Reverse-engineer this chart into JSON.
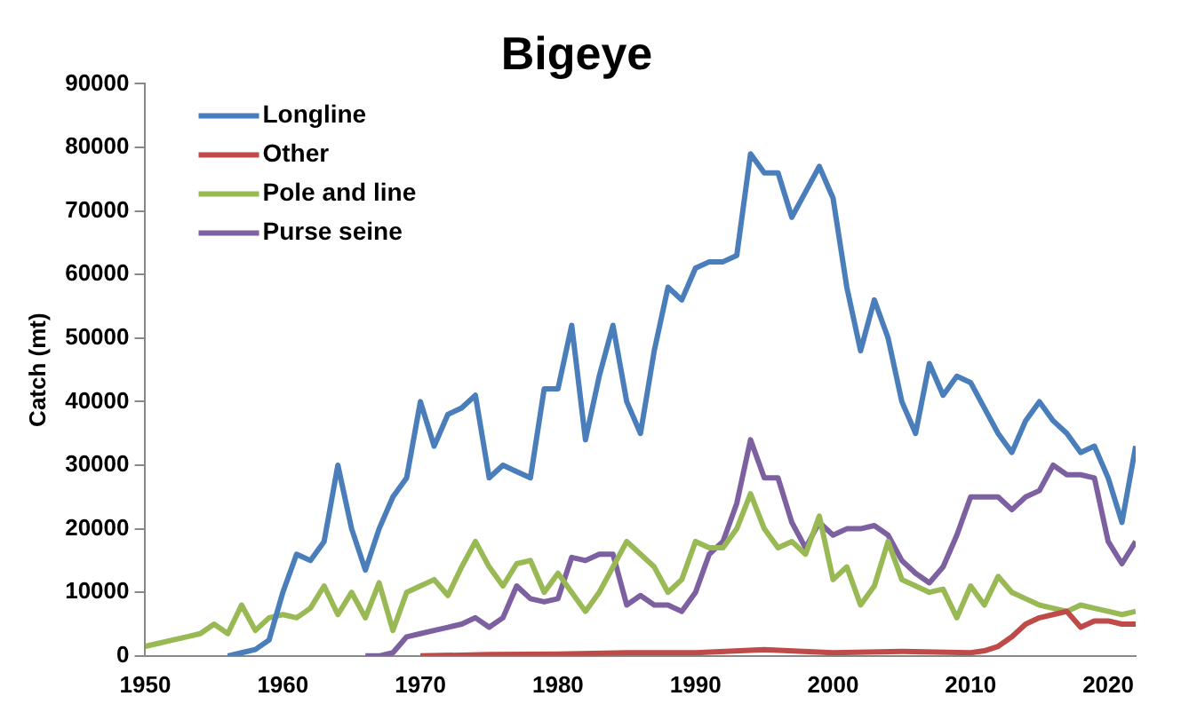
{
  "chart_data": {
    "type": "line",
    "title": "Bigeye",
    "ylabel": "Catch (mt)",
    "xlim": [
      1950,
      2022
    ],
    "xticks": [
      1950,
      1960,
      1970,
      1980,
      1990,
      2000,
      2010,
      2020
    ],
    "ylim": [
      0,
      90000
    ],
    "yticks": [
      0,
      10000,
      20000,
      30000,
      40000,
      50000,
      60000,
      70000,
      80000,
      90000
    ],
    "grid": false,
    "legend": "top left",
    "marker": "none",
    "line_style": "solid",
    "series": [
      {
        "name": "Longline",
        "color": "#4a7ebb",
        "x": [
          1956,
          1957,
          1958,
          1959,
          1960,
          1961,
          1962,
          1963,
          1964,
          1965,
          1966,
          1967,
          1968,
          1969,
          1970,
          1971,
          1972,
          1973,
          1974,
          1975,
          1976,
          1977,
          1978,
          1979,
          1980,
          1981,
          1982,
          1983,
          1984,
          1985,
          1986,
          1987,
          1988,
          1989,
          1990,
          1991,
          1992,
          1993,
          1994,
          1995,
          1996,
          1997,
          1998,
          1999,
          2000,
          2001,
          2002,
          2003,
          2004,
          2005,
          2006,
          2007,
          2008,
          2009,
          2010,
          2011,
          2012,
          2013,
          2014,
          2015,
          2016,
          2017,
          2018,
          2019,
          2020,
          2021,
          2022
        ],
        "values": [
          0,
          500,
          1000,
          2500,
          10000,
          16000,
          15000,
          18000,
          30000,
          20000,
          13500,
          20000,
          25000,
          28000,
          40000,
          33000,
          38000,
          39000,
          41000,
          28000,
          30000,
          29000,
          28000,
          42000,
          42000,
          52000,
          34000,
          44000,
          52000,
          40000,
          35000,
          48000,
          58000,
          56000,
          61000,
          62000,
          62000,
          63000,
          79000,
          76000,
          76000,
          69000,
          73000,
          77000,
          72000,
          58000,
          48000,
          56000,
          50000,
          40000,
          35000,
          46000,
          41000,
          44000,
          43000,
          39000,
          35000,
          32000,
          37000,
          40000,
          37000,
          35000,
          32000,
          33000,
          28000,
          21000,
          33000
        ]
      },
      {
        "name": "Other",
        "color": "#be4b48",
        "x": [
          1970,
          1975,
          1980,
          1985,
          1990,
          1995,
          2000,
          2005,
          2010,
          2011,
          2012,
          2013,
          2014,
          2015,
          2016,
          2017,
          2018,
          2019,
          2020,
          2021,
          2022
        ],
        "values": [
          0,
          200,
          300,
          500,
          500,
          1000,
          500,
          700,
          500,
          800,
          1500,
          3000,
          5000,
          6000,
          6500,
          7000,
          4500,
          5500,
          5500,
          5000,
          5000
        ]
      },
      {
        "name": "Pole and line",
        "color": "#98b954",
        "x": [
          1950,
          1951,
          1952,
          1953,
          1954,
          1955,
          1956,
          1957,
          1958,
          1959,
          1960,
          1961,
          1962,
          1963,
          1964,
          1965,
          1966,
          1967,
          1968,
          1969,
          1970,
          1971,
          1972,
          1973,
          1974,
          1975,
          1976,
          1977,
          1978,
          1979,
          1980,
          1981,
          1982,
          1983,
          1984,
          1985,
          1986,
          1987,
          1988,
          1989,
          1990,
          1991,
          1992,
          1993,
          1994,
          1995,
          1996,
          1997,
          1998,
          1999,
          2000,
          2001,
          2002,
          2003,
          2004,
          2005,
          2006,
          2007,
          2008,
          2009,
          2010,
          2011,
          2012,
          2013,
          2014,
          2015,
          2016,
          2017,
          2018,
          2019,
          2020,
          2021,
          2022
        ],
        "values": [
          1500,
          2000,
          2500,
          3000,
          3500,
          5000,
          3500,
          8000,
          4000,
          6000,
          6500,
          6000,
          7500,
          11000,
          6500,
          10000,
          6000,
          11500,
          4000,
          10000,
          11000,
          12000,
          9500,
          14000,
          18000,
          14000,
          11000,
          14500,
          15000,
          10000,
          13000,
          10000,
          7000,
          10000,
          14000,
          18000,
          16000,
          14000,
          10000,
          12000,
          18000,
          17000,
          17000,
          20000,
          25500,
          20000,
          17000,
          18000,
          16000,
          22000,
          12000,
          14000,
          8000,
          11000,
          18000,
          12000,
          11000,
          10000,
          10500,
          6000,
          11000,
          8000,
          12500,
          10000,
          9000,
          8000,
          7500,
          7000,
          8000,
          7500,
          7000,
          6500,
          7000
        ]
      },
      {
        "name": "Purse seine",
        "color": "#7d60a0",
        "x": [
          1966,
          1967,
          1968,
          1969,
          1970,
          1971,
          1972,
          1973,
          1974,
          1975,
          1976,
          1977,
          1978,
          1979,
          1980,
          1981,
          1982,
          1983,
          1984,
          1985,
          1986,
          1987,
          1988,
          1989,
          1990,
          1991,
          1992,
          1993,
          1994,
          1995,
          1996,
          1997,
          1998,
          1999,
          2000,
          2001,
          2002,
          2003,
          2004,
          2005,
          2006,
          2007,
          2008,
          2009,
          2010,
          2011,
          2012,
          2013,
          2014,
          2015,
          2016,
          2017,
          2018,
          2019,
          2020,
          2021,
          2022
        ],
        "values": [
          0,
          0,
          500,
          3000,
          3500,
          4000,
          4500,
          5000,
          6000,
          4500,
          6000,
          11000,
          9000,
          8500,
          9000,
          15500,
          15000,
          16000,
          16000,
          8000,
          9500,
          8000,
          8000,
          7000,
          10000,
          16000,
          18000,
          24000,
          34000,
          28000,
          28000,
          21000,
          17000,
          21000,
          19000,
          20000,
          20000,
          20500,
          19000,
          15000,
          13000,
          11500,
          14000,
          19000,
          25000,
          25000,
          25000,
          23000,
          25000,
          26000,
          30000,
          28500,
          28500,
          28000,
          18000,
          14500,
          18000
        ]
      }
    ]
  }
}
